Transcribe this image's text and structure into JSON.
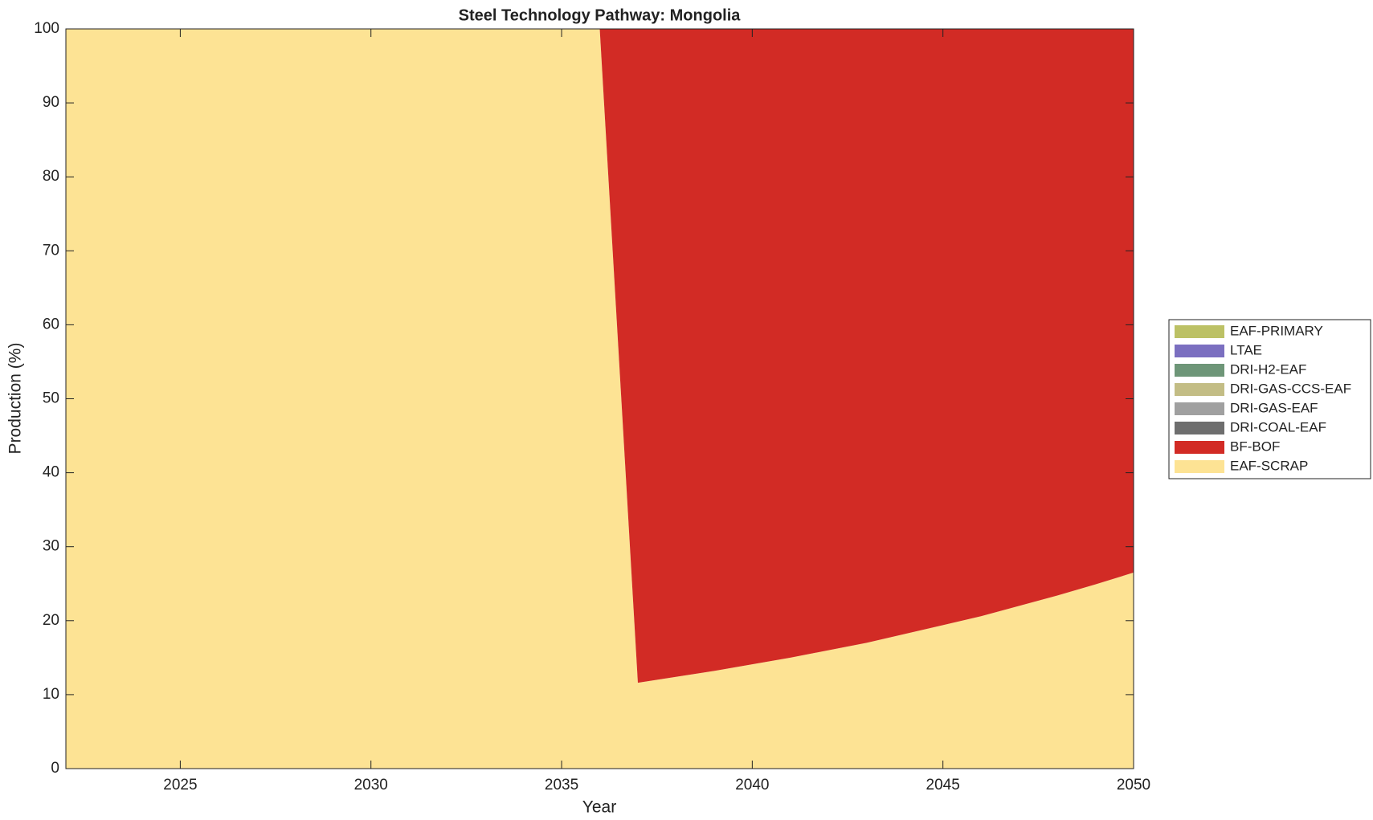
{
  "chart_data": {
    "type": "stacked_area",
    "title": "Steel Technology Pathway: Mongolia",
    "xlabel": "Year",
    "ylabel": "Production (%)",
    "x": [
      2022,
      2023,
      2024,
      2025,
      2026,
      2027,
      2028,
      2029,
      2030,
      2031,
      2032,
      2033,
      2034,
      2035,
      2036,
      2037,
      2038,
      2039,
      2040,
      2041,
      2042,
      2043,
      2044,
      2045,
      2046,
      2047,
      2048,
      2049,
      2050
    ],
    "series": [
      {
        "name": "EAF-SCRAP",
        "color": "#fde394",
        "values": [
          100,
          100,
          100,
          100,
          100,
          100,
          100,
          100,
          100,
          100,
          100,
          100,
          100,
          100,
          100,
          11.6,
          12.4,
          13.2,
          14.1,
          15.0,
          16.0,
          17.0,
          18.2,
          19.4,
          20.6,
          22.0,
          23.4,
          24.9,
          26.5
        ]
      },
      {
        "name": "BF-BOF",
        "color": "#d22b25",
        "values": [
          0,
          0,
          0,
          0,
          0,
          0,
          0,
          0,
          0,
          0,
          0,
          0,
          0,
          0,
          0,
          88.4,
          87.6,
          86.8,
          85.9,
          85.0,
          84.0,
          83.0,
          81.8,
          80.6,
          79.4,
          78.0,
          76.6,
          75.1,
          73.5
        ]
      },
      {
        "name": "DRI-COAL-EAF",
        "color": "#6e6e6e",
        "values": [
          0,
          0,
          0,
          0,
          0,
          0,
          0,
          0,
          0,
          0,
          0,
          0,
          0,
          0,
          0,
          0,
          0,
          0,
          0,
          0,
          0,
          0,
          0,
          0,
          0,
          0,
          0,
          0,
          0
        ]
      },
      {
        "name": "DRI-GAS-EAF",
        "color": "#a0a0a0",
        "values": [
          0,
          0,
          0,
          0,
          0,
          0,
          0,
          0,
          0,
          0,
          0,
          0,
          0,
          0,
          0,
          0,
          0,
          0,
          0,
          0,
          0,
          0,
          0,
          0,
          0,
          0,
          0,
          0,
          0
        ]
      },
      {
        "name": "DRI-GAS-CCS-EAF",
        "color": "#c3bd85",
        "values": [
          0,
          0,
          0,
          0,
          0,
          0,
          0,
          0,
          0,
          0,
          0,
          0,
          0,
          0,
          0,
          0,
          0,
          0,
          0,
          0,
          0,
          0,
          0,
          0,
          0,
          0,
          0,
          0,
          0
        ]
      },
      {
        "name": "DRI-H2-EAF",
        "color": "#6e9678",
        "values": [
          0,
          0,
          0,
          0,
          0,
          0,
          0,
          0,
          0,
          0,
          0,
          0,
          0,
          0,
          0,
          0,
          0,
          0,
          0,
          0,
          0,
          0,
          0,
          0,
          0,
          0,
          0,
          0,
          0
        ]
      },
      {
        "name": "LTAE",
        "color": "#7b6fc0",
        "values": [
          0,
          0,
          0,
          0,
          0,
          0,
          0,
          0,
          0,
          0,
          0,
          0,
          0,
          0,
          0,
          0,
          0,
          0,
          0,
          0,
          0,
          0,
          0,
          0,
          0,
          0,
          0,
          0,
          0
        ]
      },
      {
        "name": "EAF-PRIMARY",
        "color": "#bcc165",
        "values": [
          0,
          0,
          0,
          0,
          0,
          0,
          0,
          0,
          0,
          0,
          0,
          0,
          0,
          0,
          0,
          0,
          0,
          0,
          0,
          0,
          0,
          0,
          0,
          0,
          0,
          0,
          0,
          0,
          0
        ]
      }
    ],
    "xlim": [
      2022,
      2050
    ],
    "xticks": [
      2025,
      2030,
      2035,
      2040,
      2045,
      2050
    ],
    "ylim": [
      0,
      100
    ],
    "yticks": [
      0,
      10,
      20,
      30,
      40,
      50,
      60,
      70,
      80,
      90,
      100
    ],
    "legend": "right"
  }
}
